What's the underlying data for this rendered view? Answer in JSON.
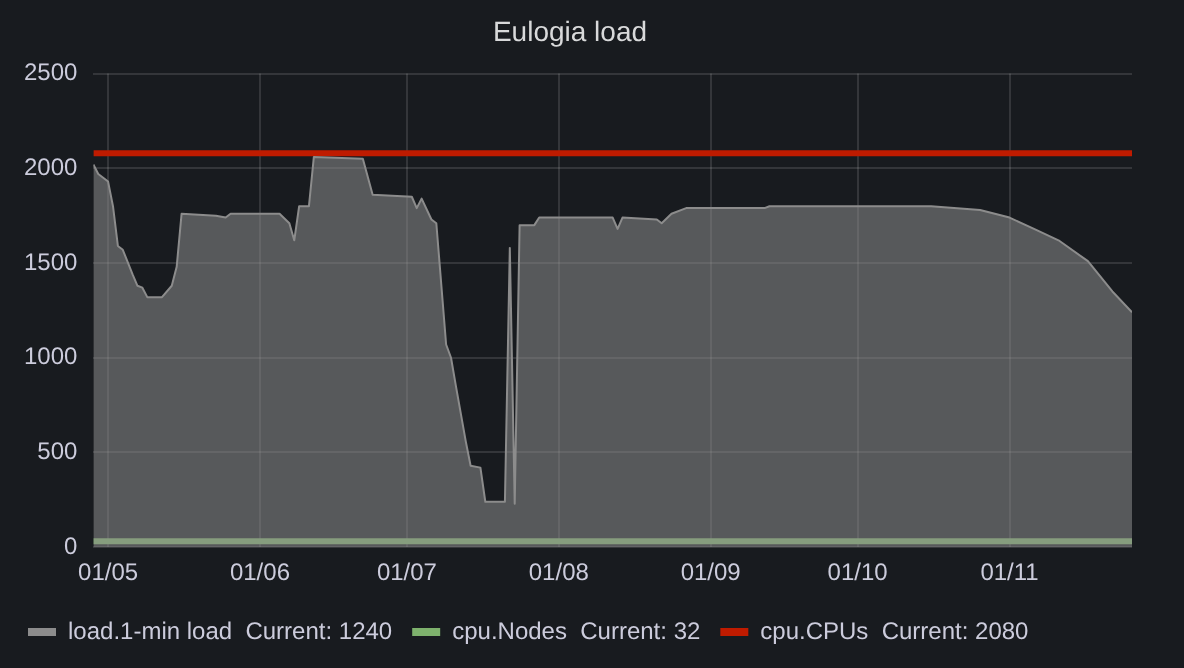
{
  "chart_data": {
    "type": "area",
    "title": "Eulogia load",
    "xlim": [
      "--04-28",
      "--11-26"
    ],
    "xticks": [
      {
        "value": "--05-01",
        "label": "01/05"
      },
      {
        "value": "--06-01",
        "label": "01/06"
      },
      {
        "value": "--07-01",
        "label": "01/07"
      },
      {
        "value": "--08-01",
        "label": "01/08"
      },
      {
        "value": "--09-01",
        "label": "01/09"
      },
      {
        "value": "--10-01",
        "label": "01/10"
      },
      {
        "value": "--11-01",
        "label": "01/11"
      }
    ],
    "ylim": [
      0,
      2500
    ],
    "yticks": [
      0,
      500,
      1000,
      1500,
      2000,
      2500
    ],
    "grid": true,
    "legend": "bottom",
    "marker": "none",
    "series": [
      {
        "name": "load.1-min load  Current: 1240",
        "color": "#8c8c8c",
        "x": [
          "--04-28",
          "--04-29",
          "--05-01",
          "--05-02",
          "--05-03",
          "--05-04",
          "--05-06",
          "--05-07",
          "--05-08",
          "--05-09",
          "--05-12",
          "--05-14",
          "--05-15",
          "--05-16",
          "--05-23",
          "--05-25",
          "--05-26",
          "--06-05",
          "--06-07",
          "--06-08",
          "--06-09",
          "--06-11",
          "--06-12",
          "--06-22",
          "--06-24",
          "--07-02",
          "--07-03",
          "--07-04",
          "--07-06",
          "--07-07",
          "--07-09",
          "--07-10",
          "--07-11",
          "--07-13",
          "--07-14",
          "--07-16",
          "--07-17",
          "--07-21",
          "--07-22",
          "--07-23",
          "--07-24",
          "--07-27",
          "--07-28",
          "--08-12",
          "--08-13",
          "--08-14",
          "--08-21",
          "--08-22",
          "--08-24",
          "--08-27",
          "--09-12",
          "--09-13",
          "--10-16",
          "--10-26",
          "--11-01",
          "--11-06",
          "--11-11",
          "--11-17",
          "--11-22",
          "--11-26"
        ],
        "values": [
          2020,
          1970,
          1930,
          1800,
          1590,
          1570,
          1440,
          1380,
          1370,
          1320,
          1320,
          1380,
          1480,
          1760,
          1750,
          1740,
          1760,
          1760,
          1710,
          1620,
          1800,
          1800,
          2060,
          2050,
          1860,
          1850,
          1790,
          1840,
          1730,
          1710,
          1070,
          1000,
          850,
          560,
          430,
          420,
          240,
          240,
          1580,
          230,
          1700,
          1700,
          1740,
          1740,
          1680,
          1740,
          1730,
          1710,
          1760,
          1790,
          1790,
          1800,
          1800,
          1780,
          1740,
          1680,
          1620,
          1510,
          1350,
          1240
        ]
      },
      {
        "name": "cpu.Nodes  Current: 32",
        "type": "line",
        "color": "#7eb26d",
        "x": [
          "--04-28",
          "--11-26"
        ],
        "values": [
          32,
          32
        ]
      },
      {
        "name": "cpu.CPUs  Current: 2080",
        "type": "line",
        "color": "#bf1b00",
        "x": [
          "--04-28",
          "--11-26"
        ],
        "values": [
          2080,
          2080
        ]
      }
    ]
  }
}
